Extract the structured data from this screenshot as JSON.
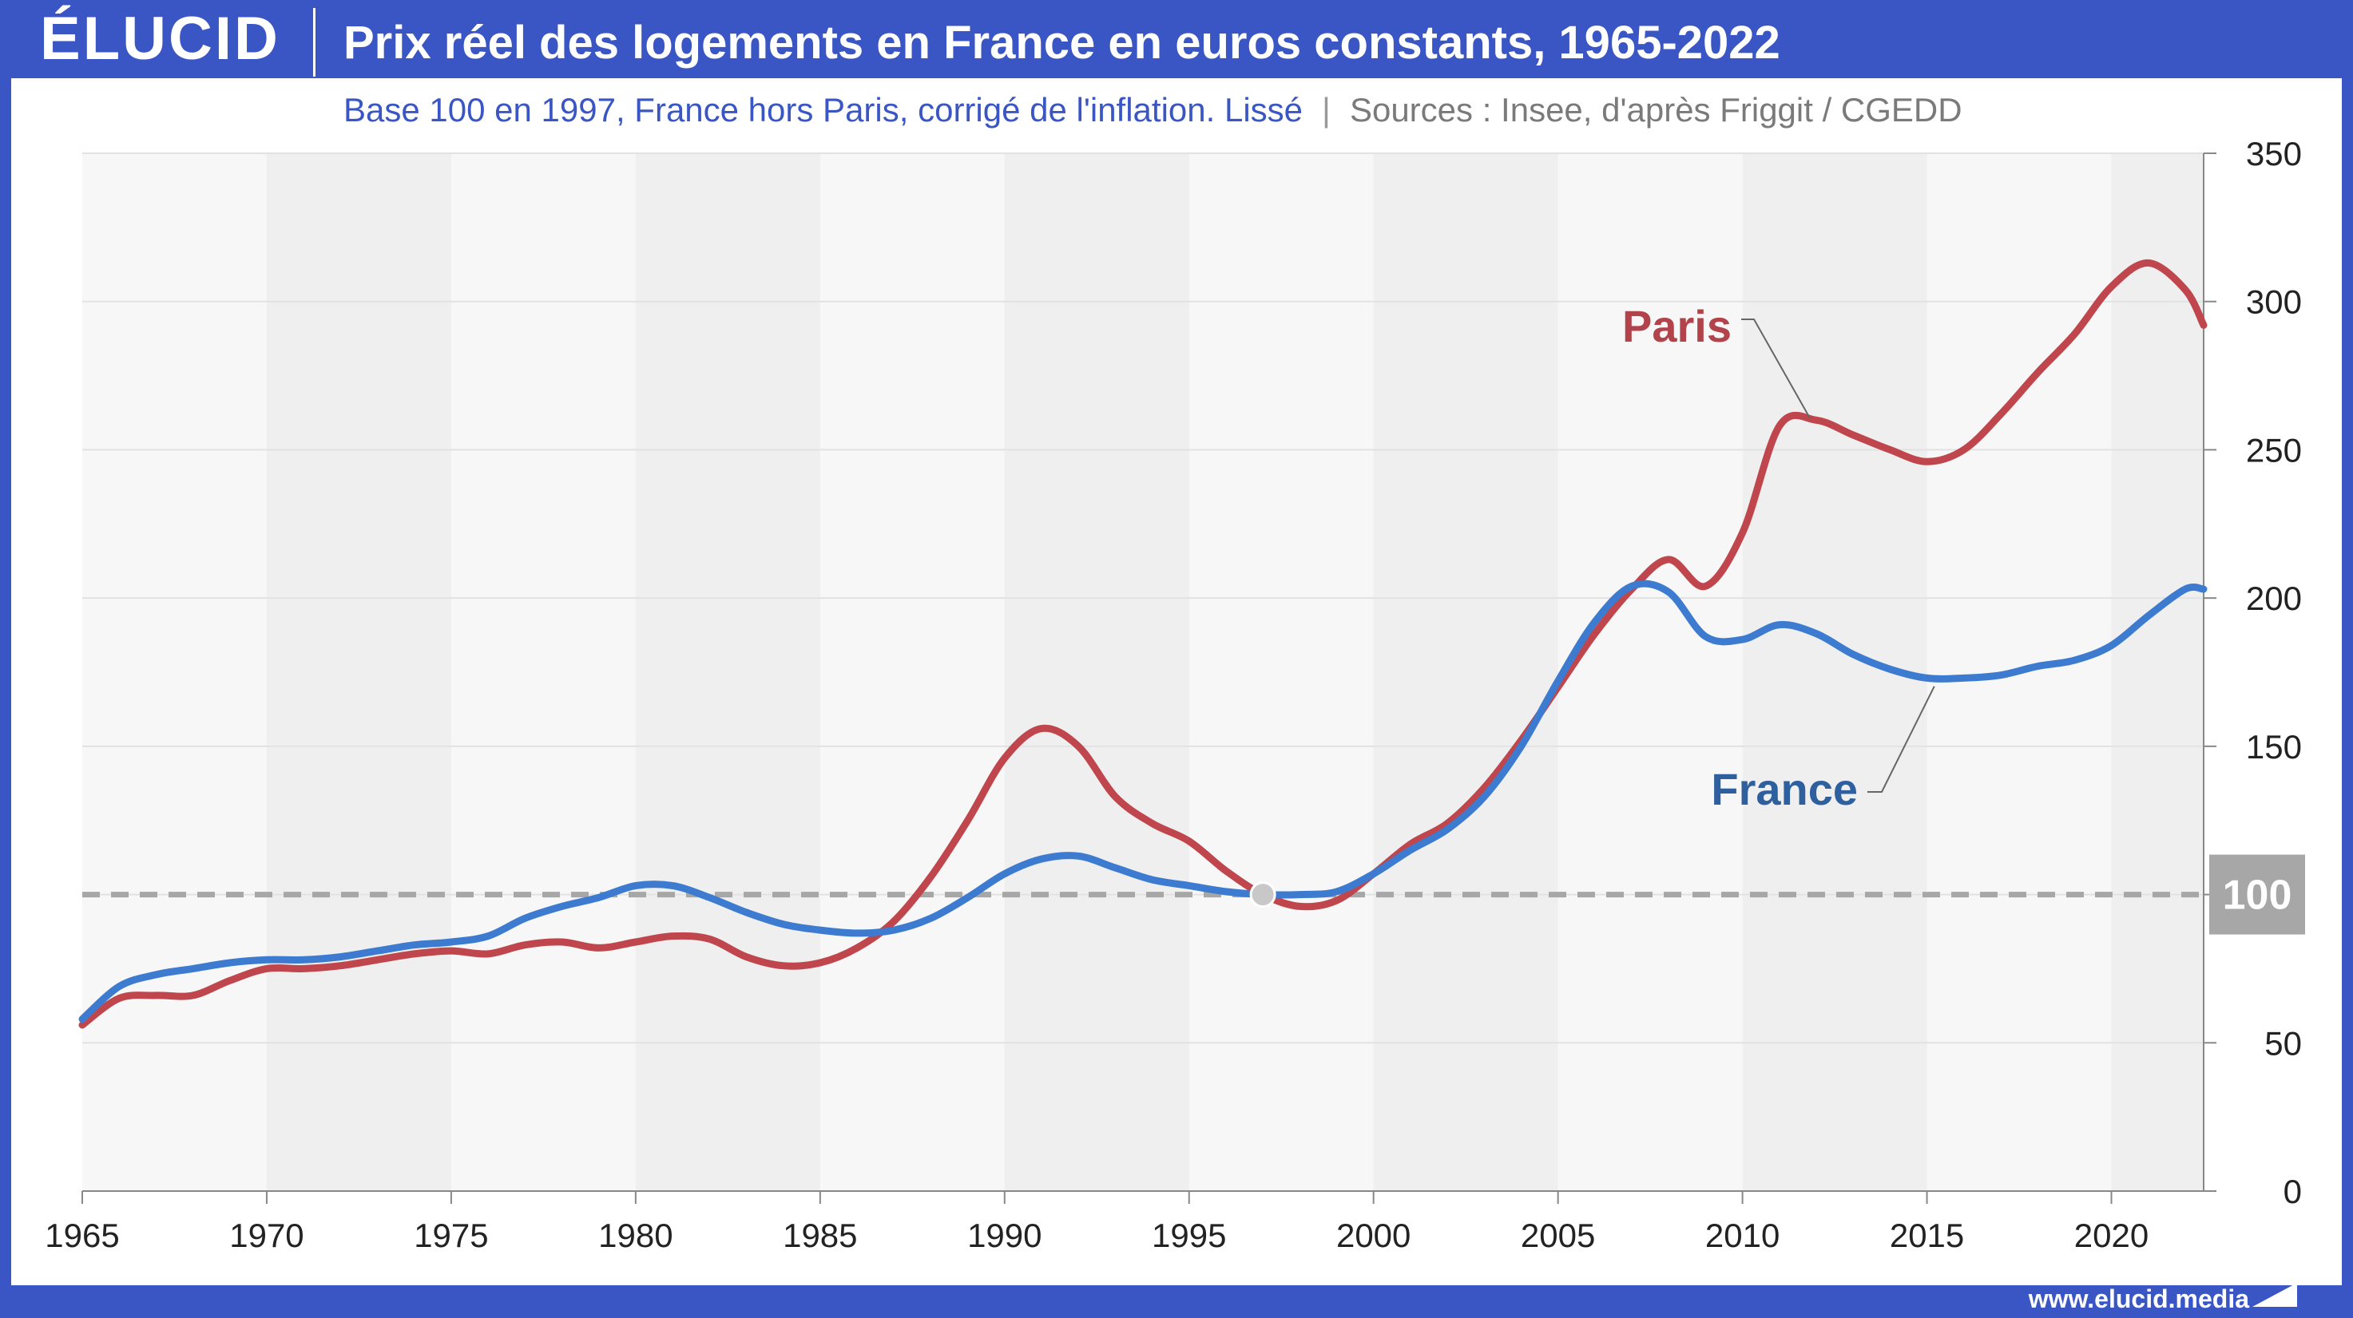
{
  "header": {
    "logo_text": "ÉLUCID",
    "title": "Prix réel des logements en France en euros constants, 1965-2022"
  },
  "subtitle": {
    "main": "Base 100 en 1997, France hors Paris, corrigé de l'inflation. Lissé",
    "separator": "|",
    "sources": "Sources : Insee, d'après Friggit / CGEDD"
  },
  "footer": {
    "url": "www.elucid.media"
  },
  "colors": {
    "brand": "#3a56c4",
    "paris": "#c0464d",
    "france": "#3c7bcf",
    "baseline": "#a7a7a7",
    "band_dark": "#efefef",
    "band_light": "#f7f7f7"
  },
  "chart_data": {
    "type": "line",
    "x_ticks": [
      1965,
      1970,
      1975,
      1980,
      1985,
      1990,
      1995,
      2000,
      2005,
      2010,
      2015,
      2020
    ],
    "y_ticks": [
      0,
      50,
      100,
      150,
      200,
      250,
      300,
      350
    ],
    "xlim": [
      1965,
      2022.5
    ],
    "ylim": [
      0,
      350
    ],
    "y_axis_position": "right",
    "reference_line": {
      "value": 100,
      "label": "100",
      "style": "dashed"
    },
    "base_point": {
      "x": 1997,
      "y": 100
    },
    "grid": true,
    "series": [
      {
        "name": "Paris",
        "x": [
          1965,
          1966,
          1967,
          1968,
          1969,
          1970,
          1971,
          1972,
          1973,
          1974,
          1975,
          1976,
          1977,
          1978,
          1979,
          1980,
          1981,
          1982,
          1983,
          1984,
          1985,
          1986,
          1987,
          1988,
          1989,
          1990,
          1991,
          1992,
          1993,
          1994,
          1995,
          1996,
          1997,
          1998,
          1999,
          2000,
          2001,
          2002,
          2003,
          2004,
          2005,
          2006,
          2007,
          2008,
          2009,
          2010,
          2011,
          2012,
          2013,
          2014,
          2015,
          2016,
          2017,
          2018,
          2019,
          2020,
          2021,
          2022,
          2022.5
        ],
        "values": [
          56,
          65,
          66,
          66,
          71,
          75,
          75,
          76,
          78,
          80,
          81,
          80,
          83,
          84,
          82,
          84,
          86,
          85,
          79,
          76,
          77,
          82,
          91,
          106,
          125,
          146,
          156,
          150,
          133,
          124,
          118,
          108,
          100,
          96,
          98,
          107,
          117,
          124,
          136,
          152,
          170,
          188,
          203,
          213,
          204,
          222,
          258,
          260,
          255,
          250,
          246,
          250,
          262,
          276,
          289,
          305,
          313,
          304,
          292
        ]
      },
      {
        "name": "France",
        "x": [
          1965,
          1966,
          1967,
          1968,
          1969,
          1970,
          1971,
          1972,
          1973,
          1974,
          1975,
          1976,
          1977,
          1978,
          1979,
          1980,
          1981,
          1982,
          1983,
          1984,
          1985,
          1986,
          1987,
          1988,
          1989,
          1990,
          1991,
          1992,
          1993,
          1994,
          1995,
          1996,
          1997,
          1998,
          1999,
          2000,
          2001,
          2002,
          2003,
          2004,
          2005,
          2006,
          2007,
          2008,
          2009,
          2010,
          2011,
          2012,
          2013,
          2014,
          2015,
          2016,
          2017,
          2018,
          2019,
          2020,
          2021,
          2022,
          2022.5
        ],
        "values": [
          58,
          69,
          73,
          75,
          77,
          78,
          78,
          79,
          81,
          83,
          84,
          86,
          92,
          96,
          99,
          103,
          103,
          99,
          94,
          90,
          88,
          87,
          88,
          92,
          99,
          107,
          112,
          113,
          109,
          105,
          103,
          101,
          100,
          100,
          101,
          107,
          115,
          122,
          133,
          150,
          172,
          192,
          204,
          202,
          187,
          186,
          191,
          188,
          181,
          176,
          173,
          173,
          174,
          177,
          179,
          184,
          194,
          203,
          203
        ]
      }
    ]
  }
}
